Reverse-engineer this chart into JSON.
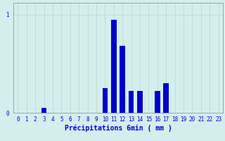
{
  "hours": [
    0,
    1,
    2,
    3,
    4,
    5,
    6,
    7,
    8,
    9,
    10,
    11,
    12,
    13,
    14,
    15,
    16,
    17,
    18,
    19,
    20,
    21,
    22,
    23
  ],
  "values": [
    0,
    0,
    0,
    0.05,
    0,
    0,
    0,
    0,
    0,
    0,
    0.25,
    0.95,
    0.68,
    0.22,
    0.22,
    0,
    0.22,
    0.3,
    0,
    0,
    0,
    0,
    0,
    0
  ],
  "bar_color": "#0000cc",
  "bg_color": "#d4eeed",
  "grid_color": "#b8d4d0",
  "axis_color": "#888888",
  "text_color": "#0000cc",
  "xlabel": "Précipitations 6min ( mm )",
  "ylim": [
    0,
    1.12
  ],
  "xlim": [
    -0.5,
    23.5
  ],
  "xlabel_fontsize": 7,
  "tick_fontsize": 5.5
}
